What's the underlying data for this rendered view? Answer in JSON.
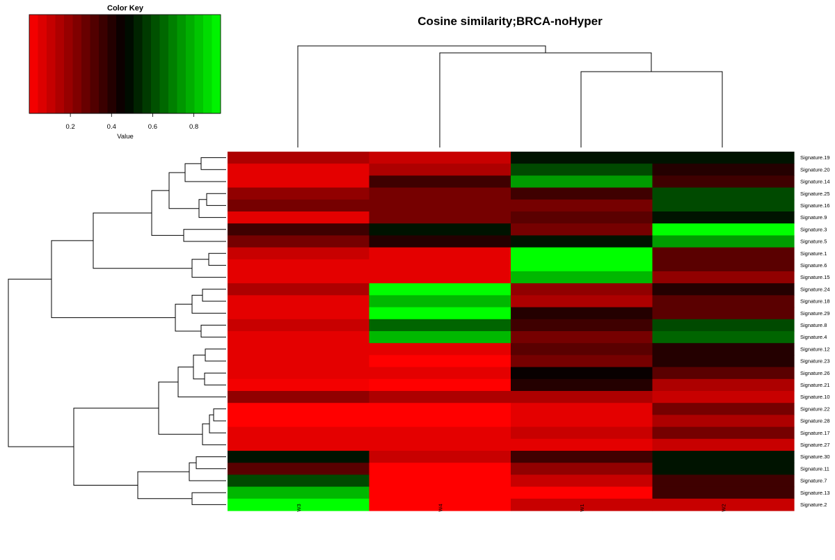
{
  "chart_data": {
    "type": "heatmap",
    "title": "Cosine similarity;BRCA-noHyper",
    "columns": [
      "W3",
      "W4",
      "W1",
      "W2"
    ],
    "rows": [
      "Signature.19",
      "Signature.20",
      "Signature.14",
      "Signature.25",
      "Signature.16",
      "Signature.9",
      "Signature.3",
      "Signature.5",
      "Signature.1",
      "Signature.6",
      "Signature.15",
      "Signature.24",
      "Signature.18",
      "Signature.29",
      "Signature.8",
      "Signature.4",
      "Signature.12",
      "Signature.23",
      "Signature.26",
      "Signature.21",
      "Signature.10",
      "Signature.22",
      "Signature.28",
      "Signature.17",
      "Signature.27",
      "Signature.30",
      "Signature.11",
      "Signature.7",
      "Signature.13",
      "Signature.2"
    ],
    "values": [
      [
        0.15,
        0.1,
        0.5,
        0.5
      ],
      [
        0.05,
        0.15,
        0.6,
        0.4
      ],
      [
        0.05,
        0.35,
        0.75,
        0.35
      ],
      [
        0.2,
        0.25,
        0.35,
        0.6
      ],
      [
        0.25,
        0.25,
        0.25,
        0.6
      ],
      [
        0.05,
        0.25,
        0.3,
        0.5
      ],
      [
        0.35,
        0.5,
        0.25,
        0.95
      ],
      [
        0.25,
        0.4,
        0.5,
        0.75
      ],
      [
        0.1,
        0.05,
        0.98,
        0.3
      ],
      [
        0.05,
        0.05,
        0.98,
        0.3
      ],
      [
        0.05,
        0.05,
        0.8,
        0.2
      ],
      [
        0.15,
        0.95,
        0.2,
        0.4
      ],
      [
        0.05,
        0.8,
        0.15,
        0.3
      ],
      [
        0.05,
        0.95,
        0.4,
        0.3
      ],
      [
        0.1,
        0.65,
        0.35,
        0.6
      ],
      [
        0.05,
        0.8,
        0.25,
        0.65
      ],
      [
        0.05,
        0.05,
        0.3,
        0.4
      ],
      [
        0.05,
        0.0,
        0.25,
        0.4
      ],
      [
        0.05,
        0.05,
        0.45,
        0.3
      ],
      [
        0.02,
        0.0,
        0.4,
        0.15
      ],
      [
        0.2,
        0.15,
        0.15,
        0.1
      ],
      [
        0.0,
        0.0,
        0.05,
        0.25
      ],
      [
        0.0,
        0.0,
        0.05,
        0.15
      ],
      [
        0.05,
        0.05,
        0.1,
        0.25
      ],
      [
        0.05,
        0.05,
        0.05,
        0.1
      ],
      [
        0.5,
        0.1,
        0.35,
        0.5
      ],
      [
        0.3,
        0.0,
        0.2,
        0.5
      ],
      [
        0.6,
        0.0,
        0.1,
        0.35
      ],
      [
        0.8,
        0.0,
        0.0,
        0.35
      ],
      [
        0.95,
        0.0,
        0.1,
        0.1
      ]
    ],
    "color_key": {
      "title": "Color Key",
      "xlabel": "Value",
      "ticks": [
        "0.2",
        "0.4",
        "0.6",
        "0.8"
      ],
      "tick_values": [
        0.2,
        0.4,
        0.6,
        0.8
      ],
      "range": [
        0.0,
        0.93
      ],
      "low_color": "#ff0000",
      "mid_color": "#000000",
      "high_color": "#00ff00"
    },
    "column_dendrogram": "((W3),(W4,(W1,W2)))",
    "row_dendrogram": true
  }
}
